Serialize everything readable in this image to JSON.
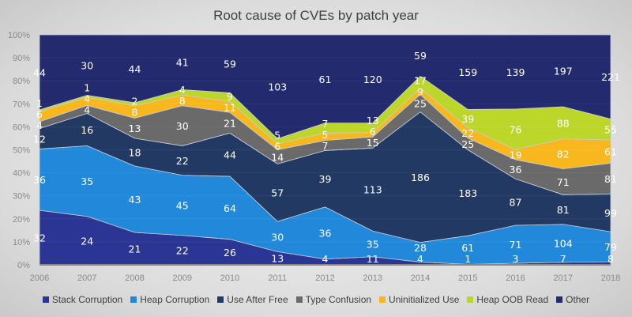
{
  "chart_data": {
    "type": "area",
    "stacking": "percent",
    "title": "Root cause of CVEs by patch year",
    "categories": [
      "2006",
      "2007",
      "2008",
      "2009",
      "2010",
      "2011",
      "2012",
      "2013",
      "2014",
      "2015",
      "2016",
      "2017",
      "2018"
    ],
    "y_ticks": [
      "0%",
      "10%",
      "20%",
      "30%",
      "40%",
      "50%",
      "60%",
      "70%",
      "80%",
      "90%",
      "100%"
    ],
    "ylim": [
      0,
      100
    ],
    "legend_position": "bottom",
    "data_labels": true,
    "series": [
      {
        "name": "Stack Corruption",
        "color": "#2b3593",
        "values": [
          32,
          24,
          21,
          22,
          26,
          13,
          4,
          11,
          4,
          1,
          3,
          7,
          8
        ]
      },
      {
        "name": "Heap Corruption",
        "color": "#2289da",
        "values": [
          36,
          35,
          43,
          45,
          64,
          30,
          36,
          35,
          28,
          61,
          71,
          104,
          79
        ]
      },
      {
        "name": "Use After Free",
        "color": "#223a63",
        "values": [
          12,
          16,
          18,
          22,
          44,
          57,
          39,
          113,
          186,
          183,
          87,
          81,
          99
        ]
      },
      {
        "name": "Type Confusion",
        "color": "#6a6a6a",
        "values": [
          4,
          4,
          13,
          30,
          21,
          14,
          7,
          15,
          25,
          25,
          36,
          71,
          81
        ]
      },
      {
        "name": "Uninitialized Use",
        "color": "#f8b71c",
        "values": [
          6,
          4,
          8,
          8,
          11,
          6,
          5,
          6,
          9,
          22,
          19,
          82,
          61
        ]
      },
      {
        "name": "Heap OOB Read",
        "color": "#bcd62a",
        "values": [
          1,
          1,
          2,
          4,
          9,
          5,
          7,
          13,
          17,
          39,
          76,
          88,
          55
        ]
      },
      {
        "name": "Other",
        "color": "#232a6d",
        "values": [
          44,
          30,
          44,
          41,
          59,
          103,
          61,
          120,
          59,
          159,
          139,
          197,
          221
        ]
      }
    ]
  }
}
